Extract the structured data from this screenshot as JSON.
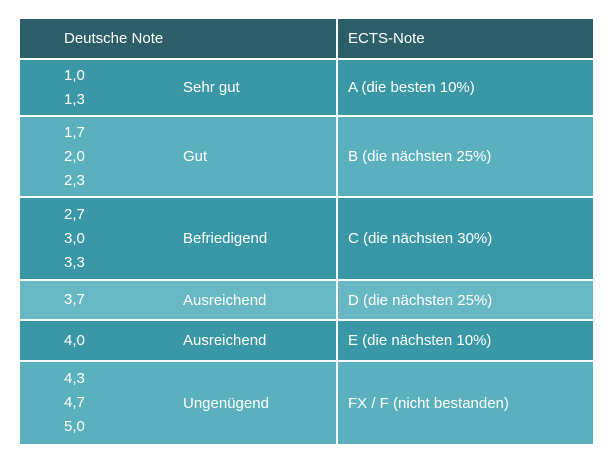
{
  "header": {
    "col1": "Deutsche Note",
    "col2": "ECTS-Note"
  },
  "rows": [
    {
      "grades": [
        "1,0",
        "1,3"
      ],
      "label": "Sehr gut",
      "ects": "A (die besten 10%)"
    },
    {
      "grades": [
        "1,7",
        "2,0",
        "2,3"
      ],
      "label": "Gut",
      "ects": "B (die nächsten 25%)"
    },
    {
      "grades": [
        "2,7",
        "3,0",
        "3,3"
      ],
      "label": "Befriedigend",
      "ects": "C (die nächsten 30%)"
    },
    {
      "grades": [
        "3,7"
      ],
      "label": "Ausreichend",
      "ects": "D (die nächsten 25%)"
    },
    {
      "grades": [
        "4,0"
      ],
      "label": "Ausreichend",
      "ects": "E (die nächsten 10%)"
    },
    {
      "grades": [
        "4,3",
        "4,7",
        "5,0"
      ],
      "label": "Ungenügend",
      "ects": "FX / F (nicht bestanden)"
    }
  ],
  "colors": {
    "header": "#2d5f69",
    "row_dark": "#3997a6",
    "row_light": "#5ab0bd",
    "row_lighter": "#68b8c3",
    "text": "#ffffff"
  }
}
